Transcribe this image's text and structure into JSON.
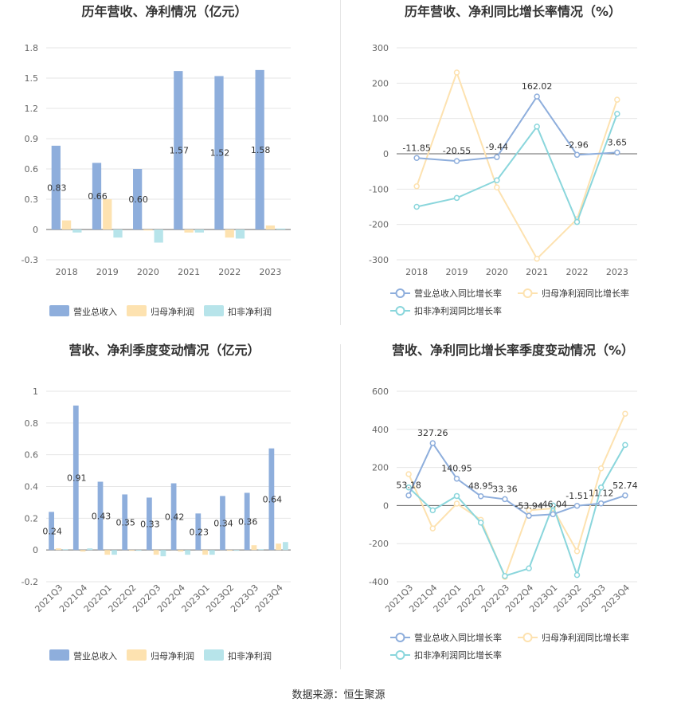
{
  "source": "数据来源：恒生聚源",
  "colors": {
    "revenue": "#8eaedc",
    "netProfit": "#fde2b0",
    "deducted": "#b7e4ea",
    "revenueLine": "#8eaedc",
    "netProfitLine": "#fde2b0",
    "deductedLine": "#8ad6dc"
  },
  "chart_data": [
    {
      "type": "bar",
      "title": "历年营收、净利情况（亿元）",
      "categories": [
        "2018",
        "2019",
        "2020",
        "2021",
        "2022",
        "2023"
      ],
      "ylim": [
        -0.3,
        1.8
      ],
      "yticks": [
        -0.3,
        0,
        0.3,
        0.6,
        0.9,
        1.2,
        1.5,
        1.8
      ],
      "ytick_labels": [
        "-0.3",
        "0",
        "0.3",
        "0.6",
        "0.9",
        "1.2",
        "1.5",
        "1.8"
      ],
      "grid": true,
      "legend": "bottom",
      "series": [
        {
          "name": "营业总收入",
          "values": [
            0.83,
            0.66,
            0.6,
            1.57,
            1.52,
            1.58
          ],
          "labels": [
            "0.83",
            "0.66",
            "0.60",
            "1.57",
            "1.52",
            "1.58"
          ]
        },
        {
          "name": "归母净利润",
          "values": [
            0.09,
            0.3,
            -0.01,
            -0.03,
            -0.08,
            0.04
          ]
        },
        {
          "name": "扣非净利润",
          "values": [
            -0.03,
            -0.08,
            -0.13,
            -0.03,
            -0.09,
            0.01
          ]
        }
      ]
    },
    {
      "type": "line",
      "title": "历年营收、净利同比增长率情况（%）",
      "categories": [
        "2018",
        "2019",
        "2020",
        "2021",
        "2022",
        "2023"
      ],
      "ylim": [
        -300,
        300
      ],
      "yticks": [
        -300,
        -200,
        -100,
        0,
        100,
        200,
        300
      ],
      "ytick_labels": [
        "-300",
        "-200",
        "-100",
        "0",
        "100",
        "200",
        "300"
      ],
      "grid": true,
      "legend": "bottom",
      "series": [
        {
          "name": "营业总收入同比增长率",
          "values": [
            -11.85,
            -20.55,
            -9.44,
            162.02,
            -2.96,
            3.65
          ],
          "labels": [
            "-11.85",
            "-20.55",
            "-9.44",
            "162.02",
            "-2.96",
            "3.65"
          ]
        },
        {
          "name": "归母净利润同比增长率",
          "values": [
            -92,
            230,
            -95,
            -297,
            -185,
            153
          ]
        },
        {
          "name": "扣非净利润同比增长率",
          "values": [
            -150,
            -125,
            -75,
            77,
            -193,
            113
          ]
        }
      ]
    },
    {
      "type": "bar",
      "title": "营收、净利季度变动情况（亿元）",
      "categories": [
        "2021Q3",
        "2021Q4",
        "2022Q1",
        "2022Q2",
        "2022Q3",
        "2022Q4",
        "2023Q1",
        "2023Q2",
        "2023Q3",
        "2023Q4"
      ],
      "ylim": [
        -0.2,
        1
      ],
      "yticks": [
        -0.2,
        0,
        0.2,
        0.4,
        0.6,
        0.8,
        1
      ],
      "ytick_labels": [
        "-0.2",
        "0",
        "0.2",
        "0.4",
        "0.6",
        "0.8",
        "1"
      ],
      "grid": true,
      "legend": "bottom",
      "series": [
        {
          "name": "营业总收入",
          "values": [
            0.24,
            0.91,
            0.43,
            0.35,
            0.33,
            0.42,
            0.23,
            0.34,
            0.36,
            0.64
          ],
          "labels": [
            "0.24",
            "0.91",
            "0.43",
            "0.35",
            "0.33",
            "0.42",
            "0.23",
            "0.34",
            "0.36",
            "0.64"
          ]
        },
        {
          "name": "归母净利润",
          "values": [
            0.01,
            -0.01,
            -0.03,
            -0.005,
            -0.03,
            -0.01,
            -0.03,
            -0.005,
            0.03,
            0.04
          ]
        },
        {
          "name": "扣非净利润",
          "values": [
            0.005,
            0.01,
            -0.03,
            -0.005,
            -0.04,
            -0.03,
            -0.03,
            -0.005,
            0.005,
            0.05
          ]
        }
      ]
    },
    {
      "type": "line",
      "title": "营收、净利同比增长率季度变动情况（%）",
      "categories": [
        "2021Q3",
        "2021Q4",
        "2022Q1",
        "2022Q2",
        "2022Q3",
        "2022Q4",
        "2023Q1",
        "2023Q2",
        "2023Q3",
        "2023Q4"
      ],
      "ylim": [
        -400,
        600
      ],
      "yticks": [
        -400,
        -200,
        0,
        200,
        400,
        600
      ],
      "ytick_labels": [
        "-400",
        "-200",
        "0",
        "200",
        "400",
        "600"
      ],
      "grid": true,
      "legend": "bottom",
      "series": [
        {
          "name": "营业总收入同比增长率",
          "values": [
            53.18,
            327.26,
            140.95,
            48.95,
            33.36,
            -53.94,
            -46.04,
            -1.51,
            11.12,
            52.74
          ],
          "labels": [
            "53.18",
            "327.26",
            "140.95",
            "48.95",
            "33.36",
            "-53.94",
            "-46.04",
            "-1.51",
            "11.12",
            "52.74"
          ]
        },
        {
          "name": "归母净利润同比增长率",
          "values": [
            165,
            -120,
            10,
            -75,
            -375,
            -25,
            -15,
            -240,
            195,
            482
          ]
        },
        {
          "name": "扣非净利润同比增长率",
          "values": [
            95,
            -25,
            50,
            -90,
            -370,
            -330,
            0,
            -365,
            95,
            318
          ]
        }
      ]
    }
  ]
}
